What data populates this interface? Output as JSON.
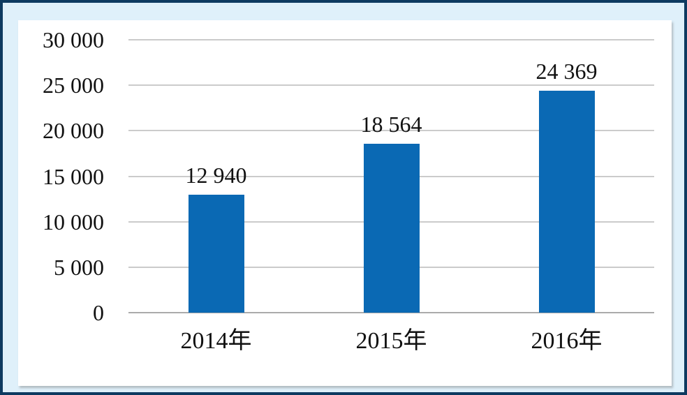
{
  "chart_data": {
    "type": "bar",
    "title": "",
    "xlabel": "",
    "ylabel": "",
    "categories": [
      "2014年",
      "2015年",
      "2016年"
    ],
    "values": [
      12940,
      18564,
      24369
    ],
    "value_labels": [
      "12 940",
      "18 564",
      "24 369"
    ],
    "y_ticks": [
      30000,
      25000,
      20000,
      15000,
      10000,
      5000,
      0
    ],
    "y_tick_labels": [
      "30 000",
      "25 000",
      "20 000",
      "15 000",
      "10 000",
      "5 000",
      "0"
    ],
    "ylim": [
      0,
      30000
    ],
    "grid": true,
    "legend": false
  },
  "colors": {
    "frame_border": "#0d3a60",
    "frame_background": "#dff0fa",
    "panel_background": "#ffffff",
    "gridline": "#cbcbcb",
    "axis_line": "#ababab",
    "bar": "#0a69b4",
    "text": "#111111"
  }
}
